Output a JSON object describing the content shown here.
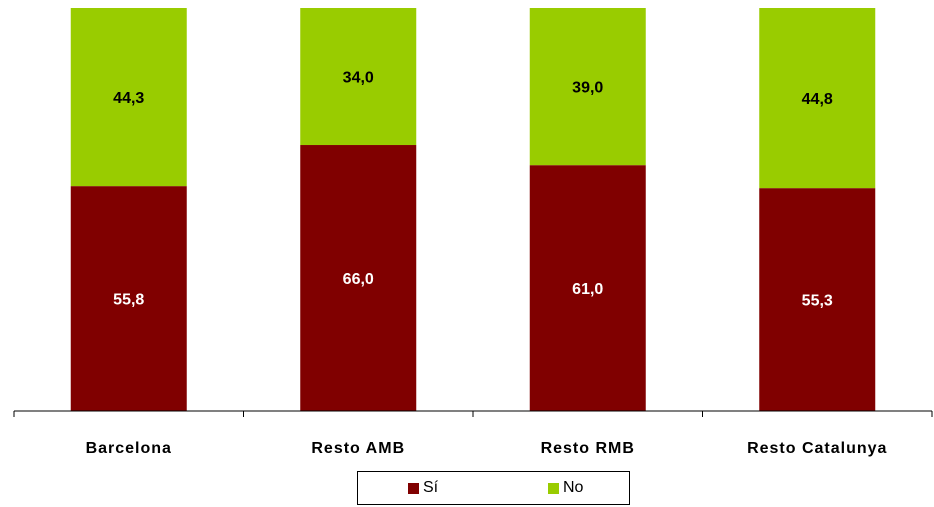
{
  "chart_data": {
    "type": "bar",
    "stacked": true,
    "categories": [
      "Barcelona",
      "Resto AMB",
      "Resto RMB",
      "Resto Catalunya"
    ],
    "series": [
      {
        "name": "Sí",
        "color": "#800000",
        "label_color": "#ffffff",
        "values": [
          55.8,
          66.0,
          61.0,
          55.3
        ],
        "labels": [
          "55,8",
          "66,0",
          "61,0",
          "55,3"
        ]
      },
      {
        "name": "No",
        "color": "#99cc00",
        "label_color": "#000000",
        "values": [
          44.3,
          34.0,
          39.0,
          44.8
        ],
        "labels": [
          "44,3",
          "34,0",
          "39,0",
          "44,8"
        ]
      }
    ],
    "ylim": [
      0,
      100
    ],
    "grid": false,
    "legend_position": "bottom"
  }
}
